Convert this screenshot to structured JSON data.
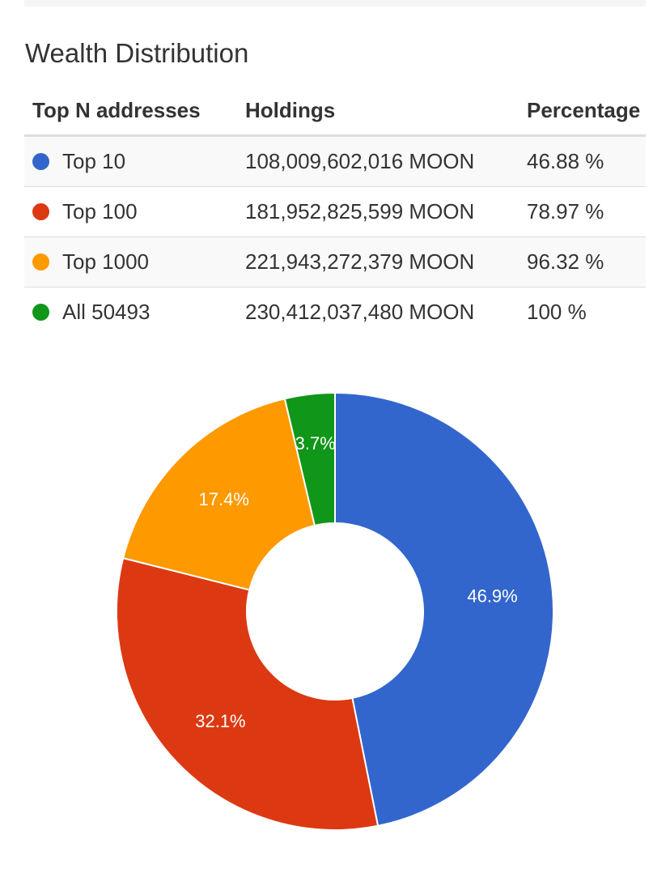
{
  "title": "Wealth Distribution",
  "table": {
    "headers": [
      "Top N addresses",
      "Holdings",
      "Percentage"
    ],
    "rows": [
      {
        "label": "Top 10",
        "holdings": "108,009,602,016 MOON",
        "percentage": "46.88 %",
        "color": "#3366cc"
      },
      {
        "label": "Top 100",
        "holdings": "181,952,825,599 MOON",
        "percentage": "78.97 %",
        "color": "#dc3912"
      },
      {
        "label": "Top 1000",
        "holdings": "221,943,272,379 MOON",
        "percentage": "96.32 %",
        "color": "#ff9900"
      },
      {
        "label": "All 50493",
        "holdings": "230,412,037,480 MOON",
        "percentage": "100 %",
        "color": "#109618"
      }
    ]
  },
  "chart_data": {
    "type": "pie",
    "donut": true,
    "categories": [
      "Top 10",
      "Top 100",
      "Top 1000",
      "All 50493"
    ],
    "values": [
      46.9,
      32.1,
      17.4,
      3.7
    ],
    "labels": [
      "46.9%",
      "32.1%",
      "17.4%",
      "3.7%"
    ],
    "colors": [
      "#3366cc",
      "#dc3912",
      "#ff9900",
      "#109618"
    ],
    "start_angle_deg": 0,
    "direction": "clockwise"
  }
}
